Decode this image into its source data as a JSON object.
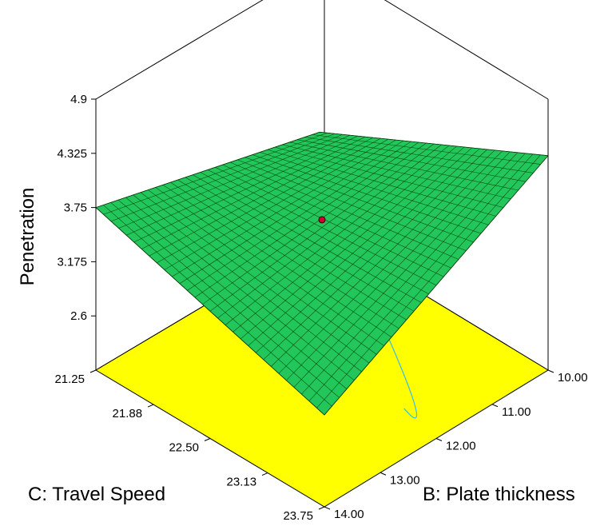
{
  "chart_data": {
    "type": "surface3d",
    "zlabel": "Penetration",
    "xlabel": "C: Travel Speed",
    "ylabel": "B: Plate thickness",
    "z_ticks": [
      "2.6",
      "3.175",
      "3.75",
      "4.325",
      "4.9"
    ],
    "x_ticks": [
      "21.25",
      "21.88",
      "22.50",
      "23.13",
      "23.75"
    ],
    "y_ticks": [
      "10.00",
      "11.00",
      "12.00",
      "13.00",
      "14.00"
    ],
    "xlim": [
      21.25,
      23.75
    ],
    "ylim": [
      10.0,
      14.0
    ],
    "zlim": [
      2.025,
      4.9
    ],
    "surface_corners": {
      "speed_21.25_thickness_10.00": 3.1,
      "speed_21.25_thickness_14.00": 3.75,
      "speed_23.75_thickness_10.00": 4.3,
      "speed_23.75_thickness_14.00": 3.0
    },
    "design_point": {
      "speed": 22.5,
      "thickness": 12.0,
      "z": 3.62
    },
    "grid_divisions": 30,
    "colors": {
      "surface": "#22c65a",
      "surface_grid": "#003300",
      "floor": "#ffff00",
      "contour": "#40c0e0",
      "point": "#cc0033"
    }
  }
}
